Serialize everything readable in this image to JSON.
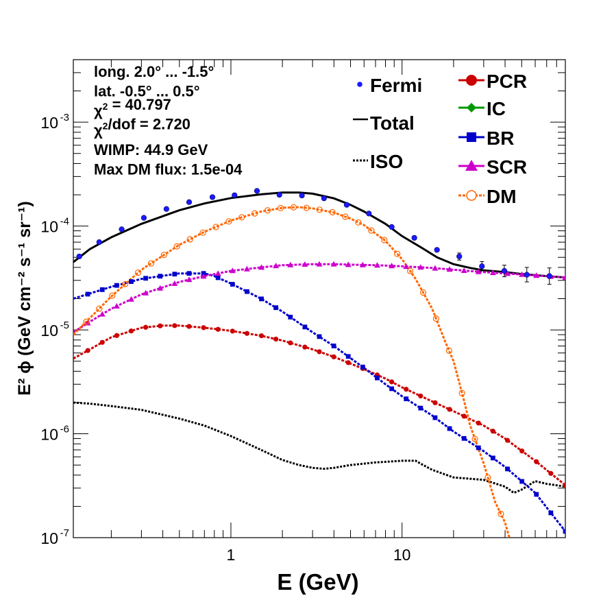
{
  "chart_data": {
    "type": "scatter",
    "xlabel": "E (GeV)",
    "ylabel": "E² ϕ (GeV cm⁻² s⁻¹ sr⁻¹)",
    "xscale": "log",
    "yscale": "log",
    "xlim": [
      0.12,
      90
    ],
    "ylim": [
      1e-07,
      0.004
    ],
    "x_ticks": [
      {
        "v": 1,
        "label": "1"
      },
      {
        "v": 10,
        "label": "10"
      }
    ],
    "y_ticks": [
      {
        "v": 1e-07,
        "base": "10",
        "exp": "-7"
      },
      {
        "v": 1e-06,
        "base": "10",
        "exp": "-6"
      },
      {
        "v": 1e-05,
        "base": "10",
        "exp": "-5"
      },
      {
        "v": 0.0001,
        "base": "10",
        "exp": "-4"
      },
      {
        "v": 0.001,
        "base": "10",
        "exp": "-3"
      }
    ],
    "annotations": [
      "long. 2.0° ... -1.5°",
      "lat. -0.5° ... 0.5°",
      "χ² = 40.797",
      "χ²/dof = 2.720",
      "WIMP: 44.9 GeV",
      "Max DM flux: 1.5e-04"
    ],
    "legend_left": [
      "Fermi",
      "Total",
      "ISO"
    ],
    "legend_right": [
      "PCR",
      "IC",
      "BR",
      "SCR",
      "DM"
    ],
    "legend_placement": "top-right",
    "grid": false,
    "fermi": {
      "name": "Fermi",
      "color": "#1a1aff",
      "x": [
        0.13,
        0.17,
        0.23,
        0.31,
        0.42,
        0.57,
        0.78,
        1.05,
        1.42,
        1.92,
        2.6,
        3.5,
        4.75,
        6.4,
        8.7,
        11.8,
        16,
        21.6,
        29.3,
        39.6,
        53.6,
        72.6
      ],
      "y": [
        5.1e-05,
        7e-05,
        9.3e-05,
        0.00012,
        0.000146,
        0.00017,
        0.00019,
        0.000198,
        0.000218,
        0.0002,
        0.000197,
        0.000185,
        0.00016,
        0.000132,
        9.8e-05,
        7.7e-05,
        5.9e-05,
        5.1e-05,
        4.1e-05,
        3.7e-05,
        3.4e-05,
        3.3e-05
      ],
      "err_lo": [
        1e-06,
        1e-06,
        1e-06,
        1e-06,
        1e-06,
        1e-06,
        2e-06,
        2e-06,
        2e-06,
        2e-06,
        2e-06,
        2e-06,
        2e-06,
        2e-06,
        2e-06,
        2e-06,
        2e-06,
        4e-06,
        4e-06,
        4.5e-06,
        5e-06,
        5.5e-06
      ],
      "err_hi": [
        1e-06,
        1e-06,
        1e-06,
        1e-06,
        1e-06,
        1e-06,
        2e-06,
        2e-06,
        2e-06,
        2e-06,
        2e-06,
        2e-06,
        2e-06,
        2e-06,
        2e-06,
        2e-06,
        2e-06,
        4e-06,
        4.5e-06,
        5e-06,
        6e-06,
        6.5e-06
      ]
    },
    "series": [
      {
        "name": "Total",
        "color": "#000000",
        "style": "solid",
        "marker": "none",
        "x": [
          0.12,
          0.15,
          0.2,
          0.3,
          0.5,
          0.7,
          1.0,
          1.5,
          2.0,
          2.5,
          3.0,
          4.0,
          5.0,
          6.0,
          8.0,
          10,
          13,
          16,
          20,
          25,
          30,
          40,
          50,
          70,
          90
        ],
        "y": [
          4.5e-05,
          6e-05,
          7.8e-05,
          0.000105,
          0.000142,
          0.000165,
          0.000186,
          0.000202,
          0.00021,
          0.00021,
          0.000205,
          0.000185,
          0.00016,
          0.000138,
          0.000105,
          8e-05,
          6.2e-05,
          5e-05,
          4.3e-05,
          3.95e-05,
          3.75e-05,
          3.6e-05,
          3.45e-05,
          3.3e-05,
          3.2e-05
        ]
      },
      {
        "name": "ISO",
        "color": "#000000",
        "style": "dotted",
        "marker": "none",
        "x": [
          0.12,
          0.15,
          0.2,
          0.3,
          0.5,
          0.7,
          1.0,
          1.5,
          2.0,
          2.5,
          3.0,
          3.5,
          4.0,
          5.0,
          7.0,
          10,
          12,
          13,
          15,
          20,
          30,
          40,
          45,
          50,
          60,
          70,
          90
        ],
        "y": [
          2e-06,
          1.95e-06,
          1.85e-06,
          1.7e-06,
          1.4e-06,
          1.2e-06,
          9.5e-07,
          7e-07,
          5.6e-07,
          5e-07,
          4.7e-07,
          4.6e-07,
          4.7e-07,
          5e-07,
          5.3e-07,
          5.5e-07,
          5.5e-07,
          5.1e-07,
          4.5e-07,
          3.8e-07,
          3.6e-07,
          3.1e-07,
          2.7e-07,
          2.9e-07,
          3.5e-07,
          3.3e-07,
          3.1e-07
        ]
      },
      {
        "name": "PCR",
        "color": "#cc0000",
        "style": "dashed",
        "marker": "circle",
        "x": [
          0.12,
          0.15,
          0.2,
          0.3,
          0.4,
          0.5,
          0.7,
          1.0,
          1.5,
          2.0,
          3.0,
          4.0,
          6.0,
          8.0,
          10,
          15,
          20,
          30,
          40,
          60,
          90
        ],
        "y": [
          5.3e-06,
          6.5e-06,
          8.5e-06,
          1.05e-05,
          1.1e-05,
          1.1e-05,
          1.05e-05,
          9.8e-06,
          8.8e-06,
          7.9e-06,
          6.5e-06,
          5.5e-06,
          4.2e-06,
          3.4e-06,
          2.8e-06,
          2.05e-06,
          1.65e-06,
          1.2e-06,
          9e-07,
          5.5e-07,
          3.2e-07
        ]
      },
      {
        "name": "IC",
        "color": "#009900",
        "style": "dashed",
        "marker": "diamond",
        "x": [],
        "y": []
      },
      {
        "name": "BR",
        "color": "#0000cc",
        "style": "dashed",
        "marker": "square",
        "x": [
          0.12,
          0.2,
          0.3,
          0.5,
          0.7,
          0.8,
          1.0,
          1.5,
          2.0,
          3.0,
          4.0,
          6.0,
          8.0,
          10,
          15,
          20,
          30,
          40,
          60,
          90
        ],
        "y": [
          2e-05,
          2.6e-05,
          3.1e-05,
          3.5e-05,
          3.5e-05,
          3.3e-05,
          2.8e-05,
          2e-05,
          1.5e-05,
          9.5e-06,
          7e-06,
          4.3e-06,
          3e-06,
          2.3e-06,
          1.5e-06,
          1.05e-06,
          6.8e-07,
          4.8e-07,
          2.7e-07,
          1.15e-07
        ]
      },
      {
        "name": "SCR",
        "color": "#cc00cc",
        "style": "dashed",
        "marker": "triangle",
        "x": [
          0.12,
          0.15,
          0.2,
          0.3,
          0.5,
          0.7,
          1.0,
          1.5,
          2.0,
          3.0,
          4.0,
          5.0,
          7.0,
          10,
          15,
          20,
          30,
          40,
          60,
          90
        ],
        "y": [
          9.5e-06,
          1.2e-05,
          1.6e-05,
          2.2e-05,
          2.9e-05,
          3.3e-05,
          3.7e-05,
          4e-05,
          4.2e-05,
          4.3e-05,
          4.3e-05,
          4.25e-05,
          4.2e-05,
          4.1e-05,
          3.95e-05,
          3.8e-05,
          3.6e-05,
          3.5e-05,
          3.35e-05,
          3.2e-05
        ]
      },
      {
        "name": "DM",
        "color": "#ff6600",
        "style": "dashed",
        "marker": "open-circle",
        "x": [
          0.12,
          0.15,
          0.2,
          0.3,
          0.5,
          0.7,
          1.0,
          1.5,
          2.0,
          2.5,
          3.0,
          4.0,
          5.0,
          6.0,
          8.0,
          10,
          12,
          15,
          18,
          20,
          23,
          25,
          30,
          35,
          40,
          45
        ],
        "y": [
          9e-06,
          1.3e-05,
          2.1e-05,
          3.8e-05,
          6.6e-05,
          8.8e-05,
          0.000113,
          0.000138,
          0.00015,
          0.000152,
          0.000148,
          0.000135,
          0.000118,
          0.000102,
          7.2e-05,
          4.8e-05,
          3.1e-05,
          1.6e-05,
          7.5e-06,
          5e-06,
          2.1e-06,
          1.2e-06,
          5.2e-07,
          2.2e-07,
          1.4e-07,
          7e-08
        ]
      }
    ]
  }
}
